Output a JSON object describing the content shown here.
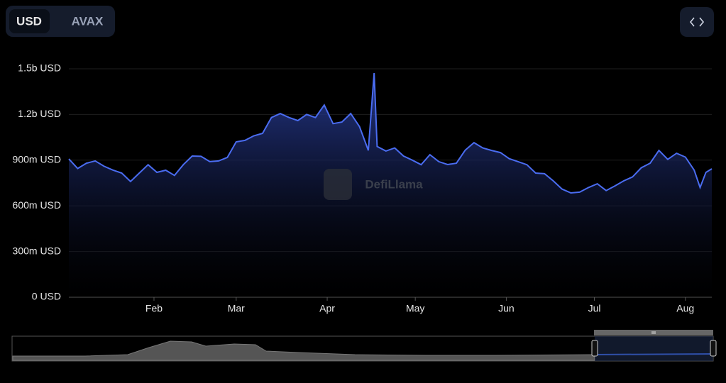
{
  "controls": {
    "currencies": [
      "USD",
      "AVAX"
    ]
  },
  "watermark": "DefiLlama",
  "chart_data": {
    "type": "area",
    "x": [
      3,
      6,
      9,
      12,
      15,
      18,
      21,
      24,
      27,
      30,
      33,
      36,
      39,
      42,
      45,
      48,
      51,
      54,
      57,
      60,
      63,
      66,
      69,
      72,
      75,
      78,
      81,
      84,
      87,
      90,
      93,
      96,
      99,
      102,
      105,
      107,
      108,
      111,
      114,
      117,
      120,
      123,
      126,
      129,
      132,
      135,
      138,
      141,
      144,
      147,
      150,
      153,
      156,
      159,
      162,
      165,
      168,
      171,
      174,
      177,
      180,
      183,
      186,
      189,
      192,
      195,
      198,
      201,
      204,
      207,
      210,
      213,
      216,
      218,
      220,
      222
    ],
    "values": [
      908000000,
      845000000,
      880000000,
      895000000,
      860000000,
      835000000,
      815000000,
      760000000,
      815000000,
      870000000,
      820000000,
      834000000,
      800000000,
      870000000,
      927000000,
      925000000,
      890000000,
      895000000,
      918000000,
      1020000000,
      1030000000,
      1060000000,
      1076000000,
      1180000000,
      1206000000,
      1180000000,
      1160000000,
      1200000000,
      1180000000,
      1262000000,
      1140000000,
      1150000000,
      1206000000,
      1120000000,
      964000000,
      1472000000,
      990000000,
      960000000,
      980000000,
      927000000,
      900000000,
      870000000,
      936000000,
      890000000,
      871000000,
      880000000,
      965000000,
      1015000000,
      980000000,
      964000000,
      950000000,
      910000000,
      890000000,
      870000000,
      815000000,
      811000000,
      764000000,
      710000000,
      685000000,
      690000000,
      720000000,
      745000000,
      700000000,
      731000000,
      764000000,
      790000000,
      850000000,
      880000000,
      964000000,
      905000000,
      945000000,
      920000000,
      834000000,
      720000000,
      820000000,
      843000000
    ],
    "color": "#4a6cf0",
    "xlim": [
      3,
      222
    ],
    "xticks": [
      {
        "value": 32,
        "label": "Feb"
      },
      {
        "value": 60,
        "label": "Mar"
      },
      {
        "value": 91,
        "label": "Apr"
      },
      {
        "value": 121,
        "label": "May"
      },
      {
        "value": 152,
        "label": "Jun"
      },
      {
        "value": 182,
        "label": "Jul"
      },
      {
        "value": 213,
        "label": "Aug"
      }
    ],
    "ylim": [
      0,
      1500000000
    ],
    "yticks": [
      {
        "value": 0,
        "label": "0 USD"
      },
      {
        "value": 300000000,
        "label": "300m USD"
      },
      {
        "value": 600000000,
        "label": "600m USD"
      },
      {
        "value": 900000000,
        "label": "900m USD"
      },
      {
        "value": 1200000000,
        "label": "1.2b USD"
      },
      {
        "value": 1500000000,
        "label": "1.5b USD"
      }
    ],
    "grid": true
  }
}
